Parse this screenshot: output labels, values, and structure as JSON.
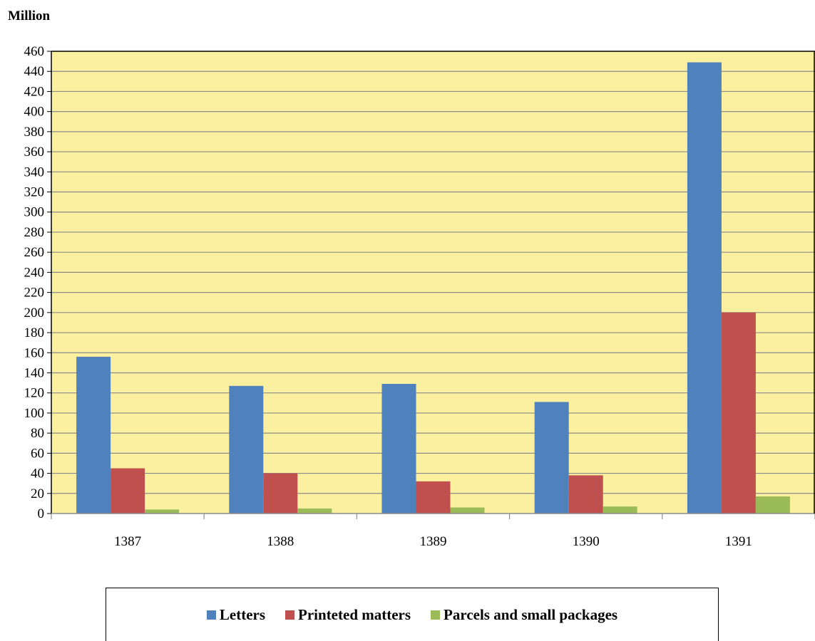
{
  "chart_data": {
    "type": "bar",
    "unit_label": "Million",
    "categories": [
      "1387",
      "1388",
      "1389",
      "1390",
      "1391"
    ],
    "series": [
      {
        "name": "Letters",
        "color": "#4F81BD",
        "values": [
          156,
          127,
          129,
          111,
          449
        ]
      },
      {
        "name": "Printeted matters",
        "color": "#C0504D",
        "values": [
          45,
          40,
          32,
          38,
          200
        ]
      },
      {
        "name": "Parcels and small packages",
        "color": "#9BBB59",
        "values": [
          4,
          5,
          6,
          7,
          17
        ]
      }
    ],
    "ylim": [
      0,
      460
    ],
    "yticks": [
      0,
      20,
      40,
      60,
      80,
      100,
      120,
      140,
      160,
      180,
      200,
      220,
      240,
      260,
      280,
      300,
      320,
      340,
      360,
      380,
      400,
      420,
      440,
      460
    ],
    "grid": true,
    "plot_background": "#FAF0A0",
    "legend_position": "bottom"
  }
}
